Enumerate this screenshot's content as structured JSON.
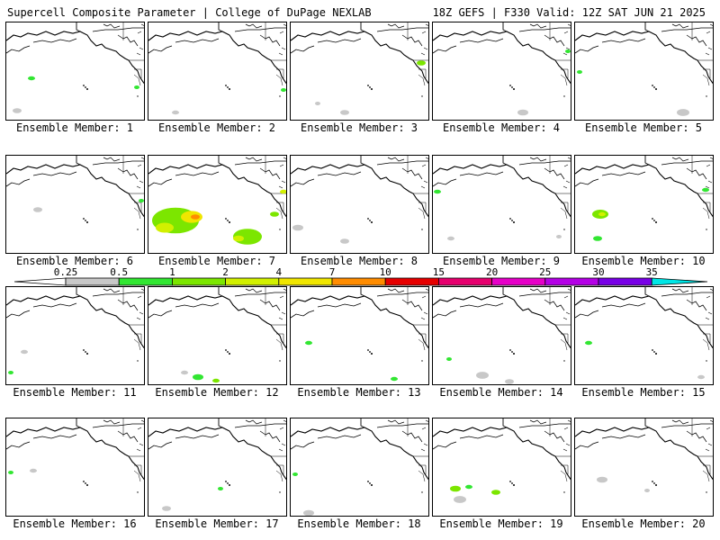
{
  "header": {
    "title": "Supercell Composite Parameter | College of DuPage NEXLAB",
    "run_info": "18Z GEFS | F330 Valid: 12Z SAT JUN 21 2025"
  },
  "legend": {
    "ticks": [
      "0.25",
      "0.5",
      "1",
      "2",
      "4",
      "7",
      "10",
      "15",
      "20",
      "25",
      "30",
      "35"
    ],
    "colors": [
      "#c8c8c8",
      "#32e632",
      "#7ce600",
      "#d2f000",
      "#f0e600",
      "#ff8c00",
      "#e60000",
      "#e6006e",
      "#e600c8",
      "#b400e6",
      "#7800e6",
      "#a050dc",
      "#00e6e6"
    ]
  },
  "panels": [
    {
      "label": "Ensemble Member: 1",
      "patches": [
        {
          "x": 28,
          "y": 62,
          "r": 4,
          "level": 1
        },
        {
          "x": 12,
          "y": 98,
          "r": 5,
          "level": 0
        },
        {
          "x": 145,
          "y": 72,
          "r": 3,
          "level": 1
        }
      ]
    },
    {
      "label": "Ensemble Member: 2",
      "patches": [
        {
          "x": 150,
          "y": 75,
          "r": 3,
          "level": 1
        },
        {
          "x": 30,
          "y": 100,
          "r": 4,
          "level": 0
        }
      ]
    },
    {
      "label": "Ensemble Member: 3",
      "patches": [
        {
          "x": 145,
          "y": 45,
          "r": 5,
          "level": 2
        },
        {
          "x": 60,
          "y": 100,
          "r": 5,
          "level": 0
        },
        {
          "x": 30,
          "y": 90,
          "r": 3,
          "level": 0
        }
      ]
    },
    {
      "label": "Ensemble Member: 4",
      "patches": [
        {
          "x": 150,
          "y": 32,
          "r": 3,
          "level": 1
        },
        {
          "x": 100,
          "y": 100,
          "r": 6,
          "level": 0
        }
      ]
    },
    {
      "label": "Ensemble Member: 5",
      "patches": [
        {
          "x": 5,
          "y": 55,
          "r": 3,
          "level": 1
        },
        {
          "x": 120,
          "y": 100,
          "r": 7,
          "level": 0
        }
      ]
    },
    {
      "label": "Ensemble Member: 6",
      "patches": [
        {
          "x": 35,
          "y": 60,
          "r": 5,
          "level": 0
        },
        {
          "x": 150,
          "y": 50,
          "r": 3,
          "level": 1
        }
      ]
    },
    {
      "label": "Ensemble Member: 7",
      "patches": [
        {
          "x": 30,
          "y": 72,
          "r": 26,
          "level": 2
        },
        {
          "x": 48,
          "y": 68,
          "r": 12,
          "level": 4
        },
        {
          "x": 52,
          "y": 68,
          "r": 5,
          "level": 5
        },
        {
          "x": 18,
          "y": 80,
          "r": 10,
          "level": 3
        },
        {
          "x": 110,
          "y": 90,
          "r": 16,
          "level": 2
        },
        {
          "x": 100,
          "y": 92,
          "r": 6,
          "level": 3
        },
        {
          "x": 140,
          "y": 65,
          "r": 5,
          "level": 2
        },
        {
          "x": 150,
          "y": 40,
          "r": 4,
          "level": 3
        }
      ]
    },
    {
      "label": "Ensemble Member: 8",
      "patches": [
        {
          "x": 8,
          "y": 80,
          "r": 6,
          "level": 0
        },
        {
          "x": 60,
          "y": 95,
          "r": 5,
          "level": 0
        }
      ]
    },
    {
      "label": "Ensemble Member: 9",
      "patches": [
        {
          "x": 5,
          "y": 40,
          "r": 4,
          "level": 1
        },
        {
          "x": 20,
          "y": 92,
          "r": 4,
          "level": 0
        },
        {
          "x": 140,
          "y": 90,
          "r": 3,
          "level": 0
        }
      ]
    },
    {
      "label": "Ensemble Member: 10",
      "patches": [
        {
          "x": 28,
          "y": 65,
          "r": 9,
          "level": 2
        },
        {
          "x": 30,
          "y": 65,
          "r": 4,
          "level": 3
        },
        {
          "x": 145,
          "y": 38,
          "r": 4,
          "level": 1
        },
        {
          "x": 25,
          "y": 92,
          "r": 5,
          "level": 1
        }
      ]
    },
    {
      "label": "Ensemble Member: 11",
      "patches": [
        {
          "x": 20,
          "y": 72,
          "r": 4,
          "level": 0
        },
        {
          "x": 5,
          "y": 95,
          "r": 3,
          "level": 1
        }
      ]
    },
    {
      "label": "Ensemble Member: 12",
      "patches": [
        {
          "x": 55,
          "y": 100,
          "r": 6,
          "level": 1
        },
        {
          "x": 75,
          "y": 104,
          "r": 4,
          "level": 2
        },
        {
          "x": 40,
          "y": 95,
          "r": 4,
          "level": 0
        }
      ]
    },
    {
      "label": "Ensemble Member: 13",
      "patches": [
        {
          "x": 20,
          "y": 62,
          "r": 4,
          "level": 1
        },
        {
          "x": 115,
          "y": 102,
          "r": 4,
          "level": 1
        }
      ]
    },
    {
      "label": "Ensemble Member: 14",
      "patches": [
        {
          "x": 18,
          "y": 80,
          "r": 3,
          "level": 1
        },
        {
          "x": 55,
          "y": 98,
          "r": 7,
          "level": 0
        },
        {
          "x": 85,
          "y": 105,
          "r": 5,
          "level": 0
        }
      ]
    },
    {
      "label": "Ensemble Member: 15",
      "patches": [
        {
          "x": 15,
          "y": 62,
          "r": 4,
          "level": 1
        },
        {
          "x": 140,
          "y": 100,
          "r": 4,
          "level": 0
        }
      ]
    },
    {
      "label": "Ensemble Member: 16",
      "patches": [
        {
          "x": 30,
          "y": 58,
          "r": 4,
          "level": 0
        },
        {
          "x": 5,
          "y": 60,
          "r": 3,
          "level": 1
        }
      ]
    },
    {
      "label": "Ensemble Member: 17",
      "patches": [
        {
          "x": 80,
          "y": 78,
          "r": 3,
          "level": 1
        },
        {
          "x": 20,
          "y": 100,
          "r": 5,
          "level": 0
        }
      ]
    },
    {
      "label": "Ensemble Member: 18",
      "patches": [
        {
          "x": 5,
          "y": 62,
          "r": 3,
          "level": 1
        },
        {
          "x": 20,
          "y": 105,
          "r": 6,
          "level": 0
        }
      ]
    },
    {
      "label": "Ensemble Member: 19",
      "patches": [
        {
          "x": 25,
          "y": 78,
          "r": 6,
          "level": 2
        },
        {
          "x": 40,
          "y": 76,
          "r": 4,
          "level": 1
        },
        {
          "x": 70,
          "y": 82,
          "r": 5,
          "level": 2
        },
        {
          "x": 30,
          "y": 90,
          "r": 7,
          "level": 0
        }
      ]
    },
    {
      "label": "Ensemble Member: 20",
      "patches": [
        {
          "x": 30,
          "y": 68,
          "r": 6,
          "level": 0
        },
        {
          "x": 80,
          "y": 80,
          "r": 3,
          "level": 0
        }
      ]
    }
  ]
}
